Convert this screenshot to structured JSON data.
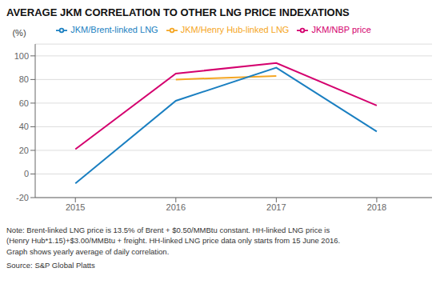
{
  "chart_data": {
    "type": "line",
    "title": "AVERAGE JKM CORRELATION TO OTHER LNG PRICE INDEXATIONS",
    "ylabel": "(%)",
    "annotations": [
      "Note: Brent-linked LNG price is 13.5% of Brent + $0.50/MMBtu constant. HH-linked LNG price is\n(Henry Hub*1.15)+$3.00/MMBtu + freight. HH-linked LNG price data only starts from 15 June 2016.\nGraph shows yearly average of daily correlation.",
      "Source: S&P Global Platts"
    ],
    "x": [
      2015,
      2016,
      2017,
      2018
    ],
    "series": [
      {
        "name": "JKM/NBP price",
        "color": "#d4006e",
        "values": [
          21,
          85,
          94,
          58
        ]
      },
      {
        "name": "JKM/Henry Hub-linked LNG",
        "color": "#f5a623",
        "values": [
          null,
          80,
          83,
          null
        ]
      },
      {
        "name": "JKM/Brent-linked LNG",
        "color": "#1a7fc1",
        "values": [
          -8,
          62,
          90,
          36
        ]
      }
    ],
    "xlim": [
      2014.6,
      2018.55
    ],
    "xticks": [
      2015,
      2016,
      2017,
      2018
    ],
    "ylim": [
      -20,
      110
    ],
    "yticks": [
      -20,
      0,
      20,
      40,
      60,
      80,
      100
    ],
    "grid": true,
    "legend": "top"
  }
}
